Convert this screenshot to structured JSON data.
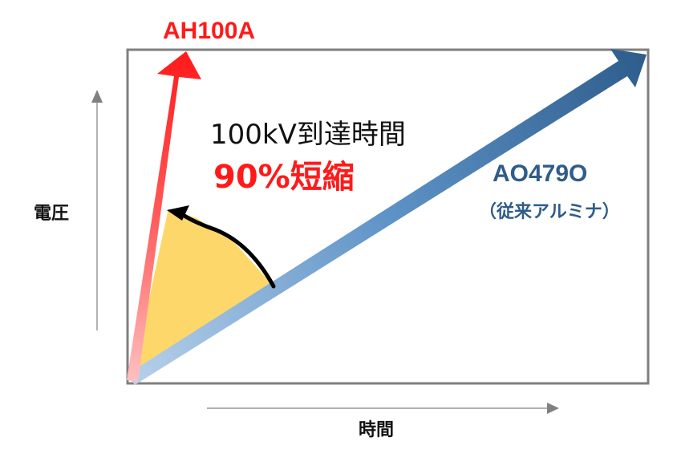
{
  "labels": {
    "fast_material": "AH100A",
    "time_metric": "100kV到達時間",
    "reduction": "90%短縮",
    "conventional_material": "AO479O",
    "conventional_note": "（従来アルミナ）",
    "y_axis": "電圧",
    "x_axis": "時間"
  },
  "colors": {
    "fast_arrow": "#ff1a1a",
    "conventional_arrow": "#2f5c8a",
    "highlight_fill": "#fdd76a",
    "frame": "#7f7f7f",
    "axis_arrows": "#808080"
  }
}
